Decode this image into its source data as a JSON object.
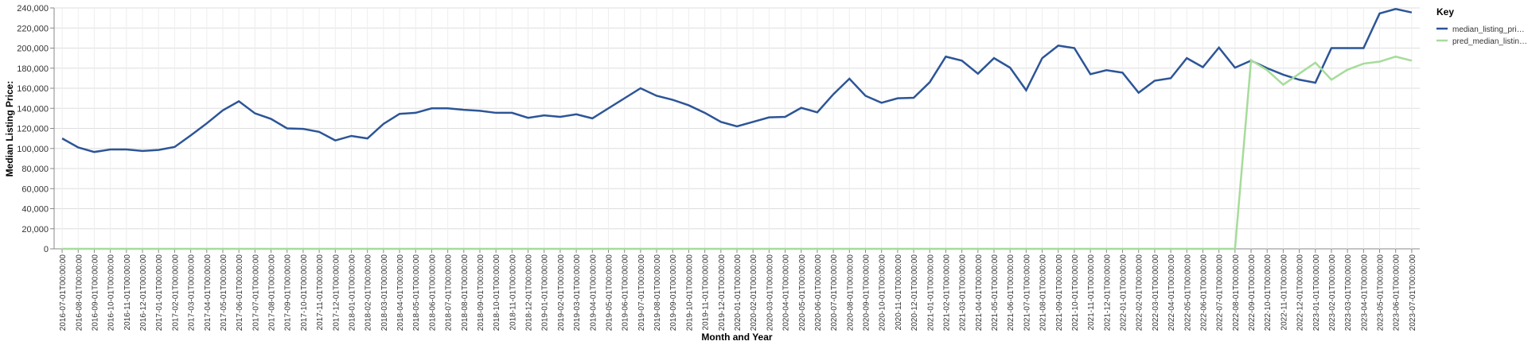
{
  "chart_data": {
    "type": "line",
    "y_label": "Median Listing Price:",
    "x_label": "Month and Year",
    "legend_title": "Key",
    "legend_position": "right",
    "grid": true,
    "categories": [
      "2016-07-01T00:00:00",
      "2016-08-01T00:00:00",
      "2016-09-01T00:00:00",
      "2016-10-01T00:00:00",
      "2016-11-01T00:00:00",
      "2016-12-01T00:00:00",
      "2017-01-01T00:00:00",
      "2017-02-01T00:00:00",
      "2017-03-01T00:00:00",
      "2017-04-01T00:00:00",
      "2017-05-01T00:00:00",
      "2017-06-01T00:00:00",
      "2017-07-01T00:00:00",
      "2017-08-01T00:00:00",
      "2017-09-01T00:00:00",
      "2017-10-01T00:00:00",
      "2017-11-01T00:00:00",
      "2017-12-01T00:00:00",
      "2018-01-01T00:00:00",
      "2018-02-01T00:00:00",
      "2018-03-01T00:00:00",
      "2018-04-01T00:00:00",
      "2018-05-01T00:00:00",
      "2018-06-01T00:00:00",
      "2018-07-01T00:00:00",
      "2018-08-01T00:00:00",
      "2018-09-01T00:00:00",
      "2018-10-01T00:00:00",
      "2018-11-01T00:00:00",
      "2018-12-01T00:00:00",
      "2019-01-01T00:00:00",
      "2019-02-01T00:00:00",
      "2019-03-01T00:00:00",
      "2019-04-01T00:00:00",
      "2019-05-01T00:00:00",
      "2019-06-01T00:00:00",
      "2019-07-01T00:00:00",
      "2019-08-01T00:00:00",
      "2019-09-01T00:00:00",
      "2019-10-01T00:00:00",
      "2019-11-01T00:00:00",
      "2019-12-01T00:00:00",
      "2020-01-01T00:00:00",
      "2020-02-01T00:00:00",
      "2020-03-01T00:00:00",
      "2020-04-01T00:00:00",
      "2020-05-01T00:00:00",
      "2020-06-01T00:00:00",
      "2020-07-01T00:00:00",
      "2020-08-01T00:00:00",
      "2020-09-01T00:00:00",
      "2020-10-01T00:00:00",
      "2020-11-01T00:00:00",
      "2020-12-01T00:00:00",
      "2021-01-01T00:00:00",
      "2021-02-01T00:00:00",
      "2021-03-01T00:00:00",
      "2021-04-01T00:00:00",
      "2021-05-01T00:00:00",
      "2021-06-01T00:00:00",
      "2021-07-01T00:00:00",
      "2021-08-01T00:00:00",
      "2021-09-01T00:00:00",
      "2021-10-01T00:00:00",
      "2021-11-01T00:00:00",
      "2021-12-01T00:00:00",
      "2022-01-01T00:00:00",
      "2022-02-01T00:00:00",
      "2022-03-01T00:00:00",
      "2022-04-01T00:00:00",
      "2022-05-01T00:00:00",
      "2022-06-01T00:00:00",
      "2022-07-01T00:00:00",
      "2022-08-01T00:00:00",
      "2022-09-01T00:00:00",
      "2022-10-01T00:00:00",
      "2022-11-01T00:00:00",
      "2022-12-01T00:00:00",
      "2023-01-01T00:00:00",
      "2023-02-01T00:00:00",
      "2023-03-01T00:00:00",
      "2023-04-01T00:00:00",
      "2023-05-01T00:00:00",
      "2023-06-01T00:00:00",
      "2023-07-01T00:00:00"
    ],
    "series": [
      {
        "name": "median_listing_pri…",
        "color": "#2c5597",
        "values": [
          110000,
          101000,
          96500,
          99000,
          99000,
          97500,
          98500,
          101500,
          113000,
          125000,
          138000,
          147000,
          135000,
          129500,
          120000,
          119500,
          116500,
          108000,
          112500,
          110000,
          124500,
          134500,
          135500,
          140000,
          140000,
          138500,
          137500,
          135500,
          135500,
          130500,
          133000,
          131500,
          134000,
          130000,
          140000,
          150000,
          160000,
          152500,
          148500,
          143000,
          135500,
          126500,
          122000,
          126500,
          131000,
          131500,
          140500,
          136000,
          154000,
          169500,
          152500,
          145500,
          150000,
          150500,
          166000,
          191500,
          187500,
          174500,
          190000,
          180500,
          158000,
          190000,
          202500,
          200000,
          174000,
          178000,
          175500,
          155500,
          167500,
          170000,
          190000,
          181000,
          200500,
          180500,
          187500,
          180000,
          173500,
          168500,
          165500,
          200000,
          200000,
          200000,
          234500,
          239000,
          235500
        ]
      },
      {
        "name": "pred_median_listin…",
        "color": "#a6dc9a",
        "values": [
          0,
          0,
          0,
          0,
          0,
          0,
          0,
          0,
          0,
          0,
          0,
          0,
          0,
          0,
          0,
          0,
          0,
          0,
          0,
          0,
          0,
          0,
          0,
          0,
          0,
          0,
          0,
          0,
          0,
          0,
          0,
          0,
          0,
          0,
          0,
          0,
          0,
          0,
          0,
          0,
          0,
          0,
          0,
          0,
          0,
          0,
          0,
          0,
          0,
          0,
          0,
          0,
          0,
          0,
          0,
          0,
          0,
          0,
          0,
          0,
          0,
          0,
          0,
          0,
          0,
          0,
          0,
          0,
          0,
          0,
          0,
          0,
          0,
          0,
          188000,
          178000,
          163500,
          174500,
          185500,
          168500,
          178500,
          184500,
          186500,
          191500,
          187500
        ]
      }
    ],
    "ylim": [
      0,
      240000
    ],
    "yticks": [
      0,
      {
        "value": 20000,
        "label": "20,000"
      },
      {
        "value": 40000,
        "label": "40,000"
      },
      {
        "value": 60000,
        "label": "60,000"
      },
      {
        "value": 80000,
        "label": "80,000"
      },
      {
        "value": 100000,
        "label": "100,000"
      },
      {
        "value": 120000,
        "label": "120,000"
      },
      {
        "value": 140000,
        "label": "140,000"
      },
      {
        "value": 160000,
        "label": "160,000"
      },
      {
        "value": 180000,
        "label": "180,000"
      },
      {
        "value": 200000,
        "label": "200,000"
      },
      {
        "value": 220000,
        "label": "220,000"
      },
      {
        "value": 240000,
        "label": "240,000"
      }
    ]
  }
}
